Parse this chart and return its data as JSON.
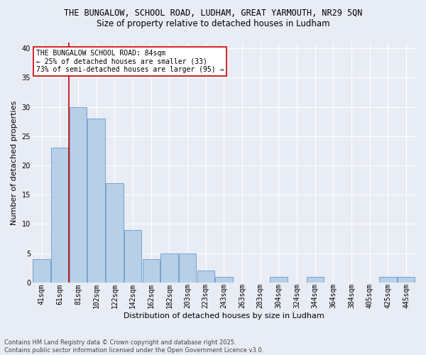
{
  "title1": "THE BUNGALOW, SCHOOL ROAD, LUDHAM, GREAT YARMOUTH, NR29 5QN",
  "title2": "Size of property relative to detached houses in Ludham",
  "xlabel": "Distribution of detached houses by size in Ludham",
  "ylabel": "Number of detached properties",
  "categories": [
    "41sqm",
    "61sqm",
    "81sqm",
    "102sqm",
    "122sqm",
    "142sqm",
    "162sqm",
    "182sqm",
    "203sqm",
    "223sqm",
    "243sqm",
    "263sqm",
    "283sqm",
    "304sqm",
    "324sqm",
    "344sqm",
    "364sqm",
    "384sqm",
    "405sqm",
    "425sqm",
    "445sqm"
  ],
  "values": [
    4,
    23,
    30,
    28,
    17,
    9,
    4,
    5,
    5,
    2,
    1,
    0,
    0,
    1,
    0,
    1,
    0,
    0,
    0,
    1,
    1
  ],
  "bar_color": "#b8cfe8",
  "bar_edge_color": "#6699cc",
  "background_color": "#e8edf5",
  "vline_color": "#cc0000",
  "annotation_text": "THE BUNGALOW SCHOOL ROAD: 84sqm\n← 25% of detached houses are smaller (33)\n73% of semi-detached houses are larger (95) →",
  "annotation_box_color": "#ffffff",
  "annotation_box_edge": "#cc0000",
  "footer": "Contains HM Land Registry data © Crown copyright and database right 2025.\nContains public sector information licensed under the Open Government Licence v3.0.",
  "ylim": [
    0,
    41
  ],
  "yticks": [
    0,
    5,
    10,
    15,
    20,
    25,
    30,
    35,
    40
  ],
  "title1_fontsize": 8.5,
  "title2_fontsize": 8.5,
  "xlabel_fontsize": 8,
  "ylabel_fontsize": 8,
  "tick_fontsize": 7,
  "annotation_fontsize": 7,
  "footer_fontsize": 6
}
